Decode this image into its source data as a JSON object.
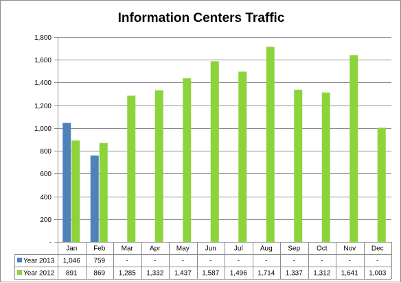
{
  "chart_data": {
    "type": "bar",
    "title": "Information Centers Traffic",
    "categories": [
      "Jan",
      "Feb",
      "Mar",
      "Apr",
      "May",
      "Jun",
      "Jul",
      "Aug",
      "Sep",
      "Oct",
      "Nov",
      "Dec"
    ],
    "series": [
      {
        "name": "Year 2013",
        "color": "#4f81bd",
        "values": [
          1046,
          759,
          null,
          null,
          null,
          null,
          null,
          null,
          null,
          null,
          null,
          null
        ],
        "labels": [
          "1,046",
          "759",
          "-",
          "-",
          "-",
          "-",
          "-",
          "-",
          "-",
          "-",
          "-",
          "-"
        ]
      },
      {
        "name": "Year 2012",
        "color": "#8dd33c",
        "values": [
          891,
          869,
          1285,
          1332,
          1437,
          1587,
          1496,
          1714,
          1337,
          1312,
          1641,
          1003
        ],
        "labels": [
          "891",
          "869",
          "1,285",
          "1,332",
          "1,437",
          "1,587",
          "1,496",
          "1,714",
          "1,337",
          "1,312",
          "1,641",
          "1,003"
        ]
      }
    ],
    "ylim": [
      0,
      1800
    ],
    "yticks": [
      0,
      200,
      400,
      600,
      800,
      1000,
      1200,
      1400,
      1600,
      1800
    ],
    "ytick_labels": [
      "-",
      "200",
      "400",
      "600",
      "800",
      "1,000",
      "1,200",
      "1,400",
      "1,600",
      "1,800"
    ],
    "grid": true,
    "legend": "data-table"
  }
}
